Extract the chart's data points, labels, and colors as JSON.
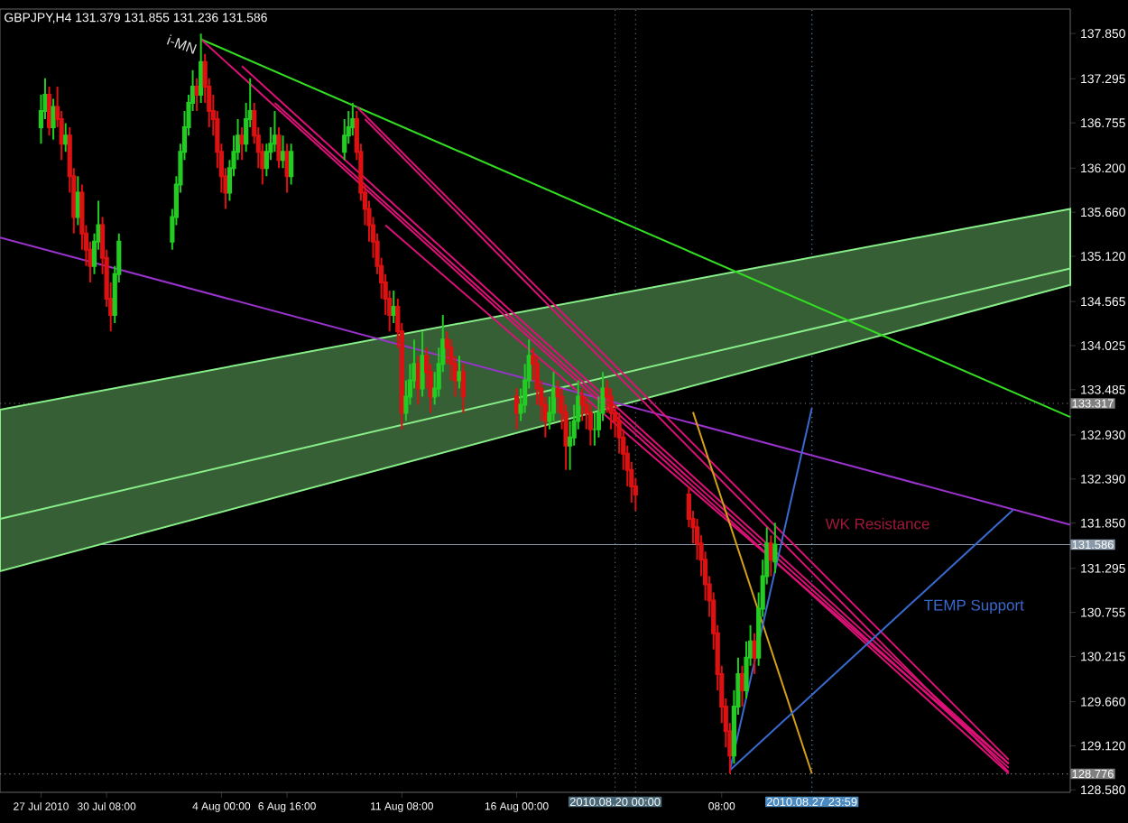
{
  "chart_data": {
    "type": "candlestick",
    "title": "GBPJPY,H4  131.379 131.855 131.236 131.586",
    "xlim": [
      "2010-07-26T00:00",
      "2010-09-07T12:00"
    ],
    "ylim": [
      128.55,
      138.15
    ],
    "xticks": [
      {
        "value": "2010-07-27T16:00",
        "label": "27 Jul 2010"
      },
      {
        "value": "2010-07-30T08:00",
        "label": "30 Jul 08:00"
      },
      {
        "value": "2010-08-04T00:00",
        "label": "4 Aug 00:00"
      },
      {
        "value": "2010-08-06T16:00",
        "label": "6 Aug 16:00"
      },
      {
        "value": "2010-08-11T08:00",
        "label": "11 Aug 08:00"
      },
      {
        "value": "2010-08-16T00:00",
        "label": "16 Aug 00:00"
      },
      {
        "value": "2010-08-24T08:00",
        "label": "08:00"
      }
    ],
    "yticks": [
      {
        "value": 137.85,
        "label": "137.850"
      },
      {
        "value": 137.295,
        "label": "137.295"
      },
      {
        "value": 136.755,
        "label": "136.755"
      },
      {
        "value": 136.2,
        "label": "136.200"
      },
      {
        "value": 135.66,
        "label": "135.660"
      },
      {
        "value": 135.12,
        "label": "135.120"
      },
      {
        "value": 134.565,
        "label": "134.565"
      },
      {
        "value": 134.025,
        "label": "134.025"
      },
      {
        "value": 133.485,
        "label": "133.485"
      },
      {
        "value": 132.93,
        "label": "132.930"
      },
      {
        "value": 132.39,
        "label": "132.390"
      },
      {
        "value": 131.85,
        "label": "131.850"
      },
      {
        "value": 131.295,
        "label": "131.295"
      },
      {
        "value": 130.755,
        "label": "130.755"
      },
      {
        "value": 130.215,
        "label": "130.215"
      },
      {
        "value": 129.66,
        "label": "129.660"
      },
      {
        "value": 129.12,
        "label": "129.120"
      },
      {
        "value": 128.58,
        "label": "128.580"
      }
    ],
    "ref_lines": [
      {
        "axis": "y",
        "value": 133.317,
        "label": "133.317",
        "color": "#808080",
        "line_style": "dotted"
      },
      {
        "axis": "y",
        "value": 131.586,
        "label": "131.586",
        "color": "#8a9aaa",
        "line_style": "solid"
      },
      {
        "axis": "y",
        "value": 128.776,
        "label": "128.776",
        "color": "#808080",
        "line_style": "dotted"
      },
      {
        "axis": "x",
        "value": "2010-08-20T00:00",
        "label": "2010.08.20 00:00",
        "color": "#4a6a7a",
        "line_style": "dotted"
      },
      {
        "axis": "x",
        "value": "2010-08-20T20:00",
        "color": "#4a6a7a",
        "line_style": "dotted"
      },
      {
        "axis": "x",
        "value": "2010-08-27T23:59",
        "label": "2010.08.27 23:59",
        "color": "#4a8ac0",
        "line_style": "dotted"
      }
    ],
    "annotations": [
      "i-MN",
      "WK Resistance",
      "TEMP Support"
    ],
    "series": [
      {
        "type": "line",
        "color": "#88ee88",
        "x": [
          "2010-07-26T00:00",
          "2010-09-07T12:00"
        ],
        "values": [
          131.9,
          134.97
        ],
        "lower": [
          131.26,
          134.77
        ],
        "upper": [
          133.24,
          135.7
        ]
      },
      {
        "type": "line",
        "color": "#33dd22",
        "x": [
          "2010-08-03T04:00",
          "2010-09-07T12:00"
        ],
        "values": [
          137.78,
          133.15
        ]
      },
      {
        "type": "line",
        "color": "#9933cc",
        "x": [
          "2010-07-26T00:00",
          "2010-09-07T12:00"
        ],
        "values": [
          135.35,
          131.83
        ]
      },
      {
        "type": "line",
        "color": "#dd1177",
        "x": [
          "2010-08-03T04:00",
          "2010-09-05T00:00"
        ],
        "values": [
          137.78,
          128.78
        ]
      },
      {
        "type": "line",
        "color": "#dd1177",
        "x": [
          "2010-08-04T20:00",
          "2010-09-05T00:00"
        ],
        "values": [
          137.45,
          128.9
        ]
      },
      {
        "type": "line",
        "color": "#dd1177",
        "x": [
          "2010-08-06T04:00",
          "2010-09-05T00:00"
        ],
        "values": [
          137.0,
          128.85
        ]
      },
      {
        "type": "line",
        "color": "#dd1177",
        "x": [
          "2010-08-09T12:00",
          "2010-09-05T00:00"
        ],
        "values": [
          136.95,
          128.95
        ]
      },
      {
        "type": "line",
        "color": "#dd1177",
        "x": [
          "2010-08-09T20:00",
          "2010-09-05T00:00"
        ],
        "values": [
          136.8,
          128.8
        ]
      },
      {
        "type": "line",
        "color": "#dd1177",
        "x": [
          "2010-08-10T16:00",
          "2010-09-05T00:00"
        ],
        "values": [
          135.5,
          128.9
        ]
      },
      {
        "type": "line",
        "color": "#d4a017",
        "x": [
          "2010-08-23T04:00",
          "2010-08-27T23:59"
        ],
        "values": [
          133.21,
          128.78
        ]
      },
      {
        "type": "line",
        "color": "#3a6ad0",
        "x": [
          "2010-08-24T16:00",
          "2010-08-27T23:59"
        ],
        "values": [
          128.82,
          133.26
        ]
      },
      {
        "type": "line",
        "color": "#3a6ad0",
        "x": [
          "2010-08-24T16:00",
          "2010-09-05T04:00"
        ],
        "values": [
          128.82,
          132.01
        ]
      },
      {
        "x": [
          "2010-07-27T16:00",
          "2010-07-27T20:00",
          "2010-07-28T00:00",
          "2010-07-28T04:00",
          "2010-07-28T08:00",
          "2010-07-28T12:00",
          "2010-07-28T16:00",
          "2010-07-28T20:00",
          "2010-07-29T00:00",
          "2010-07-29T04:00",
          "2010-07-29T08:00",
          "2010-07-29T12:00",
          "2010-07-29T16:00",
          "2010-07-29T20:00",
          "2010-07-30T00:00",
          "2010-07-30T04:00",
          "2010-07-30T08:00",
          "2010-07-30T12:00",
          "2010-07-30T16:00",
          "2010-07-30T20:00",
          "2010-08-02T00:00",
          "2010-08-02T04:00",
          "2010-08-02T08:00",
          "2010-08-02T12:00",
          "2010-08-02T16:00",
          "2010-08-02T20:00",
          "2010-08-03T00:00",
          "2010-08-03T04:00",
          "2010-08-03T08:00",
          "2010-08-03T12:00",
          "2010-08-03T16:00",
          "2010-08-03T20:00",
          "2010-08-04T00:00",
          "2010-08-04T04:00",
          "2010-08-04T08:00",
          "2010-08-04T12:00",
          "2010-08-04T16:00",
          "2010-08-04T20:00",
          "2010-08-05T00:00",
          "2010-08-05T04:00",
          "2010-08-05T08:00",
          "2010-08-05T12:00",
          "2010-08-05T16:00",
          "2010-08-05T20:00",
          "2010-08-06T00:00",
          "2010-08-06T04:00",
          "2010-08-06T08:00",
          "2010-08-06T12:00",
          "2010-08-06T16:00",
          "2010-08-06T20:00",
          "2010-08-09T00:00",
          "2010-08-09T04:00",
          "2010-08-09T08:00",
          "2010-08-09T12:00",
          "2010-08-09T16:00",
          "2010-08-09T20:00",
          "2010-08-10T00:00",
          "2010-08-10T04:00",
          "2010-08-10T08:00",
          "2010-08-10T12:00",
          "2010-08-10T16:00",
          "2010-08-10T20:00",
          "2010-08-11T00:00",
          "2010-08-11T04:00",
          "2010-08-11T08:00",
          "2010-08-11T12:00",
          "2010-08-11T16:00",
          "2010-08-11T20:00",
          "2010-08-12T00:00",
          "2010-08-12T04:00",
          "2010-08-12T08:00",
          "2010-08-12T12:00",
          "2010-08-12T16:00",
          "2010-08-12T20:00",
          "2010-08-13T00:00",
          "2010-08-13T04:00",
          "2010-08-13T08:00",
          "2010-08-13T12:00",
          "2010-08-13T16:00",
          "2010-08-13T20:00",
          "2010-08-16T00:00",
          "2010-08-16T04:00",
          "2010-08-16T08:00",
          "2010-08-16T12:00",
          "2010-08-16T16:00",
          "2010-08-16T20:00",
          "2010-08-17T00:00",
          "2010-08-17T04:00",
          "2010-08-17T08:00",
          "2010-08-17T12:00",
          "2010-08-17T16:00",
          "2010-08-17T20:00",
          "2010-08-18T00:00",
          "2010-08-18T04:00",
          "2010-08-18T08:00",
          "2010-08-18T12:00",
          "2010-08-18T16:00",
          "2010-08-18T20:00",
          "2010-08-19T00:00",
          "2010-08-19T04:00",
          "2010-08-19T08:00",
          "2010-08-19T12:00",
          "2010-08-19T16:00",
          "2010-08-19T20:00",
          "2010-08-20T00:00",
          "2010-08-20T04:00",
          "2010-08-20T08:00",
          "2010-08-20T12:00",
          "2010-08-20T16:00",
          "2010-08-20T20:00",
          "2010-08-23T00:00",
          "2010-08-23T04:00",
          "2010-08-23T08:00",
          "2010-08-23T12:00",
          "2010-08-23T16:00",
          "2010-08-23T20:00",
          "2010-08-24T00:00",
          "2010-08-24T04:00",
          "2010-08-24T08:00",
          "2010-08-24T12:00",
          "2010-08-24T16:00",
          "2010-08-24T20:00",
          "2010-08-25T00:00",
          "2010-08-25T04:00",
          "2010-08-25T08:00",
          "2010-08-25T12:00",
          "2010-08-25T16:00",
          "2010-08-25T20:00",
          "2010-08-26T00:00",
          "2010-08-26T04:00",
          "2010-08-26T08:00",
          "2010-08-26T12:00"
        ],
        "ohlc": [
          [
            136.7,
            137.1,
            136.5,
            136.9
          ],
          [
            136.9,
            137.3,
            136.8,
            137.1
          ],
          [
            137.1,
            137.2,
            136.6,
            136.7
          ],
          [
            136.7,
            137.05,
            136.55,
            136.95
          ],
          [
            136.95,
            137.2,
            136.7,
            136.8
          ],
          [
            136.8,
            136.9,
            136.3,
            136.5
          ],
          [
            136.5,
            136.75,
            136.4,
            136.6
          ],
          [
            136.6,
            136.7,
            135.9,
            136.1
          ],
          [
            136.1,
            136.2,
            135.4,
            135.6
          ],
          [
            135.6,
            136.1,
            135.5,
            135.9
          ],
          [
            135.9,
            136.0,
            135.2,
            135.4
          ],
          [
            135.4,
            135.5,
            135.0,
            135.2
          ],
          [
            135.2,
            135.3,
            134.8,
            135.0
          ],
          [
            135.0,
            135.4,
            134.9,
            135.3
          ],
          [
            135.3,
            135.8,
            135.2,
            135.5
          ],
          [
            135.5,
            135.6,
            134.9,
            135.1
          ],
          [
            135.1,
            135.2,
            134.5,
            134.6
          ],
          [
            134.6,
            134.8,
            134.2,
            134.4
          ],
          [
            134.4,
            135.0,
            134.3,
            134.9
          ],
          [
            134.9,
            135.4,
            134.8,
            135.3
          ],
          [
            135.3,
            135.7,
            135.2,
            135.6
          ],
          [
            135.6,
            136.1,
            135.5,
            136.0
          ],
          [
            136.0,
            136.5,
            135.9,
            136.4
          ],
          [
            136.4,
            136.9,
            136.3,
            136.7
          ],
          [
            136.7,
            137.1,
            136.6,
            137.0
          ],
          [
            137.0,
            137.4,
            136.9,
            137.2
          ],
          [
            137.2,
            137.3,
            136.9,
            137.1
          ],
          [
            137.1,
            137.85,
            137.0,
            137.5
          ],
          [
            137.5,
            137.6,
            137.0,
            137.2
          ],
          [
            137.2,
            137.3,
            136.7,
            136.9
          ],
          [
            136.9,
            137.1,
            136.6,
            136.8
          ],
          [
            136.8,
            136.9,
            136.2,
            136.4
          ],
          [
            136.4,
            136.5,
            135.9,
            136.1
          ],
          [
            136.1,
            136.2,
            135.7,
            135.9
          ],
          [
            135.9,
            136.3,
            135.8,
            136.2
          ],
          [
            136.2,
            136.6,
            136.1,
            136.4
          ],
          [
            136.4,
            136.8,
            136.3,
            136.6
          ],
          [
            136.6,
            136.7,
            136.3,
            136.5
          ],
          [
            136.5,
            137.0,
            136.4,
            136.8
          ],
          [
            136.8,
            137.3,
            136.7,
            136.9
          ],
          [
            136.9,
            137.0,
            136.5,
            136.6
          ],
          [
            136.6,
            136.7,
            136.2,
            136.4
          ],
          [
            136.4,
            136.5,
            136.0,
            136.2
          ],
          [
            136.2,
            136.5,
            136.1,
            136.4
          ],
          [
            136.4,
            136.7,
            136.3,
            136.5
          ],
          [
            136.5,
            136.9,
            136.4,
            136.6
          ],
          [
            136.6,
            136.7,
            136.2,
            136.3
          ],
          [
            136.3,
            136.6,
            136.2,
            136.4
          ],
          [
            136.4,
            136.5,
            135.9,
            136.1
          ],
          [
            136.1,
            136.5,
            136.0,
            136.4
          ],
          [
            136.4,
            136.8,
            136.3,
            136.6
          ],
          [
            136.6,
            136.9,
            136.5,
            136.7
          ],
          [
            136.7,
            137.0,
            136.6,
            136.8
          ],
          [
            136.8,
            136.9,
            136.3,
            136.4
          ],
          [
            136.4,
            136.5,
            135.8,
            135.9
          ],
          [
            135.9,
            136.0,
            135.5,
            135.7
          ],
          [
            135.7,
            135.8,
            135.3,
            135.5
          ],
          [
            135.5,
            135.6,
            135.1,
            135.3
          ],
          [
            135.3,
            135.4,
            134.9,
            135.0
          ],
          [
            135.0,
            135.1,
            134.6,
            134.8
          ],
          [
            134.8,
            134.9,
            134.4,
            134.6
          ],
          [
            134.6,
            134.7,
            134.2,
            134.4
          ],
          [
            134.4,
            134.7,
            134.3,
            134.5
          ],
          [
            134.5,
            134.6,
            134.0,
            134.2
          ],
          [
            134.2,
            134.3,
            133.0,
            133.2
          ],
          [
            133.2,
            133.6,
            133.1,
            133.4
          ],
          [
            133.4,
            133.8,
            133.3,
            133.6
          ],
          [
            133.6,
            134.1,
            133.5,
            133.8
          ],
          [
            133.8,
            133.9,
            133.3,
            133.5
          ],
          [
            133.5,
            134.2,
            133.4,
            133.9
          ],
          [
            133.9,
            134.0,
            133.5,
            133.7
          ],
          [
            133.7,
            133.8,
            133.2,
            133.4
          ],
          [
            133.4,
            133.7,
            133.3,
            133.5
          ],
          [
            133.5,
            134.0,
            133.4,
            133.8
          ],
          [
            133.8,
            134.4,
            133.7,
            134.1
          ],
          [
            134.1,
            134.2,
            133.8,
            134.0
          ],
          [
            134.0,
            134.1,
            133.6,
            133.8
          ],
          [
            133.8,
            133.9,
            133.4,
            133.6
          ],
          [
            133.6,
            133.9,
            133.5,
            133.7
          ],
          [
            133.7,
            133.8,
            133.2,
            133.4
          ],
          [
            133.4,
            133.5,
            133.0,
            133.2
          ],
          [
            133.2,
            133.5,
            133.1,
            133.3
          ],
          [
            133.3,
            133.8,
            133.2,
            133.6
          ],
          [
            133.6,
            134.1,
            133.5,
            133.9
          ],
          [
            133.9,
            134.0,
            133.6,
            133.8
          ],
          [
            133.8,
            133.9,
            133.3,
            133.5
          ],
          [
            133.5,
            133.6,
            133.1,
            133.3
          ],
          [
            133.3,
            133.4,
            132.9,
            133.1
          ],
          [
            133.1,
            133.4,
            133.0,
            133.2
          ],
          [
            133.2,
            133.7,
            133.1,
            133.5
          ],
          [
            133.5,
            133.6,
            133.2,
            133.4
          ],
          [
            133.4,
            133.5,
            133.0,
            133.2
          ],
          [
            133.2,
            133.3,
            132.5,
            132.8
          ],
          [
            132.8,
            133.1,
            132.5,
            132.9
          ],
          [
            132.9,
            133.3,
            132.8,
            133.1
          ],
          [
            133.1,
            133.6,
            133.0,
            133.4
          ],
          [
            133.4,
            133.5,
            133.1,
            133.3
          ],
          [
            133.3,
            133.4,
            133.0,
            133.2
          ],
          [
            133.2,
            133.3,
            132.8,
            133.0
          ],
          [
            133.0,
            133.2,
            132.8,
            133.0
          ],
          [
            133.0,
            133.4,
            132.9,
            133.2
          ],
          [
            133.2,
            133.7,
            133.1,
            133.5
          ],
          [
            133.5,
            133.6,
            133.2,
            133.4
          ],
          [
            133.4,
            133.5,
            133.0,
            133.2
          ],
          [
            133.2,
            133.3,
            132.9,
            133.1
          ],
          [
            133.1,
            133.2,
            132.7,
            132.9
          ],
          [
            132.9,
            133.0,
            132.5,
            132.7
          ],
          [
            132.7,
            132.8,
            132.3,
            132.5
          ],
          [
            132.5,
            132.6,
            132.1,
            132.3
          ],
          [
            132.3,
            132.4,
            132.0,
            132.2
          ],
          [
            132.2,
            132.3,
            131.8,
            131.9
          ],
          [
            131.9,
            132.0,
            131.6,
            131.8
          ],
          [
            131.8,
            131.9,
            131.4,
            131.6
          ],
          [
            131.6,
            131.7,
            131.2,
            131.4
          ],
          [
            131.4,
            131.5,
            130.9,
            131.1
          ],
          [
            131.1,
            131.2,
            130.7,
            130.9
          ],
          [
            130.9,
            131.0,
            130.3,
            130.5
          ],
          [
            130.5,
            130.6,
            129.8,
            130.0
          ],
          [
            130.0,
            130.1,
            129.4,
            129.6
          ],
          [
            129.6,
            129.7,
            129.1,
            129.3
          ],
          [
            129.3,
            129.4,
            128.78,
            129.0
          ],
          [
            129.0,
            129.8,
            128.9,
            129.6
          ],
          [
            129.6,
            130.2,
            129.5,
            130.0
          ],
          [
            130.0,
            130.1,
            129.6,
            129.8
          ],
          [
            129.8,
            130.4,
            129.7,
            130.2
          ],
          [
            130.2,
            130.6,
            130.1,
            130.4
          ],
          [
            130.4,
            130.5,
            130.0,
            130.2
          ],
          [
            130.2,
            131.0,
            130.1,
            130.8
          ],
          [
            130.8,
            131.4,
            130.7,
            131.2
          ],
          [
            131.2,
            131.8,
            131.1,
            131.6
          ],
          [
            131.6,
            131.7,
            131.2,
            131.4
          ],
          [
            131.379,
            131.855,
            131.236,
            131.586
          ]
        ],
        "colors": [
          "#22cc22",
          "#22cc22",
          "#dd1111",
          "#22cc22",
          "#dd1111",
          "#dd1111",
          "#22cc22",
          "#dd1111",
          "#dd1111",
          "#22cc22",
          "#dd1111",
          "#dd1111",
          "#dd1111",
          "#22cc22",
          "#22cc22",
          "#dd1111",
          "#dd1111",
          "#dd1111",
          "#22cc22",
          "#22cc22",
          "#22cc22",
          "#22cc22",
          "#22cc22",
          "#22cc22",
          "#22cc22",
          "#22cc22",
          "#dd1111",
          "#22cc22",
          "#dd1111",
          "#dd1111",
          "#dd1111",
          "#dd1111",
          "#dd1111",
          "#dd1111",
          "#22cc22",
          "#22cc22",
          "#22cc22",
          "#dd1111",
          "#22cc22",
          "#22cc22",
          "#dd1111",
          "#dd1111",
          "#dd1111",
          "#22cc22",
          "#22cc22",
          "#22cc22",
          "#dd1111",
          "#22cc22",
          "#dd1111",
          "#22cc22",
          "#22cc22",
          "#22cc22",
          "#22cc22",
          "#dd1111",
          "#dd1111",
          "#dd1111",
          "#dd1111",
          "#dd1111",
          "#dd1111",
          "#dd1111",
          "#dd1111",
          "#dd1111",
          "#22cc22",
          "#dd1111",
          "#dd1111",
          "#22cc22",
          "#22cc22",
          "#22cc22",
          "#dd1111",
          "#22cc22",
          "#dd1111",
          "#dd1111",
          "#22cc22",
          "#22cc22",
          "#22cc22",
          "#dd1111",
          "#dd1111",
          "#dd1111",
          "#22cc22",
          "#dd1111",
          "#dd1111",
          "#22cc22",
          "#22cc22",
          "#22cc22",
          "#dd1111",
          "#dd1111",
          "#dd1111",
          "#dd1111",
          "#22cc22",
          "#22cc22",
          "#dd1111",
          "#dd1111",
          "#dd1111",
          "#22cc22",
          "#22cc22",
          "#22cc22",
          "#dd1111",
          "#dd1111",
          "#dd1111",
          "#22cc22",
          "#22cc22",
          "#22cc22",
          "#dd1111",
          "#dd1111",
          "#dd1111",
          "#dd1111",
          "#dd1111",
          "#dd1111",
          "#dd1111",
          "#dd1111",
          "#dd1111",
          "#dd1111",
          "#dd1111",
          "#dd1111",
          "#dd1111",
          "#dd1111",
          "#dd1111",
          "#dd1111",
          "#dd1111",
          "#dd1111",
          "#dd1111",
          "#22cc22",
          "#22cc22",
          "#dd1111",
          "#22cc22",
          "#22cc22",
          "#dd1111",
          "#22cc22",
          "#22cc22",
          "#22cc22",
          "#dd1111",
          "#22cc22"
        ]
      }
    ]
  }
}
